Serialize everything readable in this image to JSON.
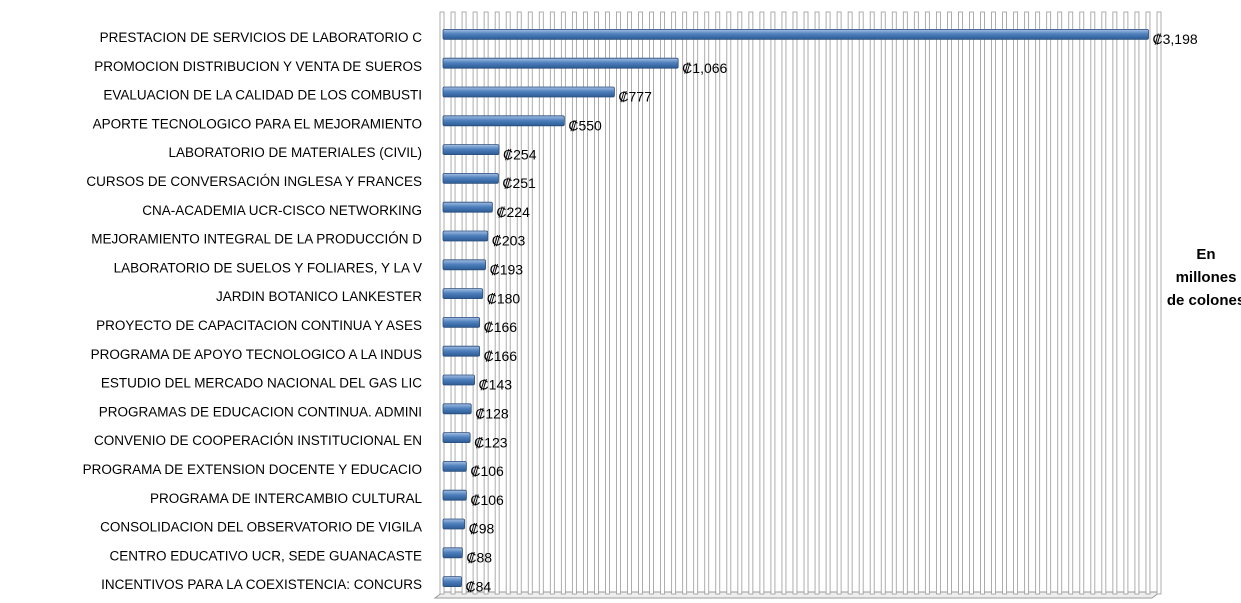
{
  "chart_data": {
    "type": "bar",
    "orientation": "horizontal",
    "categories": [
      "PRESTACION DE SERVICIOS DE LABORATORIO C",
      "PROMOCION DISTRIBUCION Y VENTA DE SUEROS",
      "EVALUACION DE LA CALIDAD DE LOS COMBUSTI",
      "APORTE TECNOLOGICO PARA EL MEJORAMIENTO",
      "LABORATORIO DE MATERIALES (CIVIL)",
      "CURSOS DE CONVERSACIÓN INGLESA Y FRANCES",
      "CNA-ACADEMIA UCR-CISCO NETWORKING",
      "MEJORAMIENTO INTEGRAL DE LA PRODUCCIÓN D",
      "LABORATORIO DE SUELOS Y FOLIARES, Y LA V",
      "JARDIN BOTANICO LANKESTER",
      "PROYECTO DE CAPACITACION CONTINUA Y ASES",
      "PROGRAMA DE APOYO TECNOLOGICO A LA INDUS",
      "ESTUDIO DEL MERCADO NACIONAL DEL GAS LIC",
      "PROGRAMAS DE EDUCACION CONTINUA.  ADMINI",
      "CONVENIO DE COOPERACIÓN INSTITUCIONAL EN",
      "PROGRAMA DE EXTENSION DOCENTE Y EDUCACIO",
      "PROGRAMA DE INTERCAMBIO CULTURAL",
      "CONSOLIDACION DEL OBSERVATORIO DE VIGILA",
      "CENTRO EDUCATIVO UCR, SEDE GUANACASTE",
      "INCENTIVOS PARA LA COEXISTENCIA: CONCURS"
    ],
    "values": [
      3198,
      1066,
      777,
      550,
      254,
      251,
      224,
      203,
      193,
      180,
      166,
      166,
      143,
      128,
      123,
      106,
      106,
      98,
      88,
      84
    ],
    "value_labels": [
      "₡3,198",
      "₡1,066",
      "₡777",
      "₡550",
      "₡254",
      "₡251",
      "₡224",
      "₡203",
      "₡193",
      "₡180",
      "₡166",
      "₡166",
      "₡143",
      "₡128",
      "₡123",
      "₡106",
      "₡106",
      "₡98",
      "₡88",
      "₡84"
    ],
    "color": "#4f81bd",
    "xlim": [
      0,
      3250
    ],
    "xticks": [
      0,
      50,
      100,
      150,
      200,
      250,
      300,
      350,
      400,
      450,
      500,
      550,
      600,
      650,
      700,
      750,
      800,
      850,
      900,
      950,
      1000,
      1050,
      1100,
      1150,
      1200,
      1250,
      1300,
      1350,
      1400,
      1450,
      1500,
      1550,
      1600,
      1650,
      1700,
      1750,
      1800,
      1850,
      1900,
      1950,
      2000,
      2050,
      2100,
      2150,
      2200,
      2250,
      2300,
      2350,
      2400,
      2450,
      2500,
      2550,
      2600,
      2650,
      2700,
      2750,
      2800,
      2850,
      2900,
      2950,
      3000,
      3050,
      3100,
      3150,
      3200,
      3250
    ],
    "grid": true,
    "annotation": [
      "En",
      "millones",
      "de colones"
    ]
  }
}
